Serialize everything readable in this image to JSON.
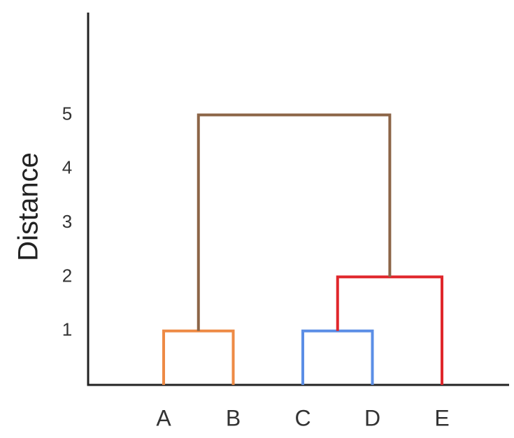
{
  "chart_data": {
    "type": "dendrogram",
    "ylabel": "Distance",
    "xlabel": "",
    "title": "",
    "ylim": [
      0,
      7
    ],
    "yticks": [
      1,
      2,
      3,
      4,
      5
    ],
    "leaves": [
      "A",
      "B",
      "C",
      "D",
      "E"
    ],
    "merges": [
      {
        "left": "A",
        "right": "B",
        "height": 1,
        "color": "#ee8a45"
      },
      {
        "left": "C",
        "right": "D",
        "height": 1,
        "color": "#5b8ee6"
      },
      {
        "left": "C-D",
        "right": "E",
        "height": 2,
        "color": "#e0262b"
      },
      {
        "left": "A-B",
        "right": "C-D-E",
        "height": 5,
        "color": "#8c6547"
      }
    ],
    "axis_color": "#222222",
    "grid": false
  }
}
